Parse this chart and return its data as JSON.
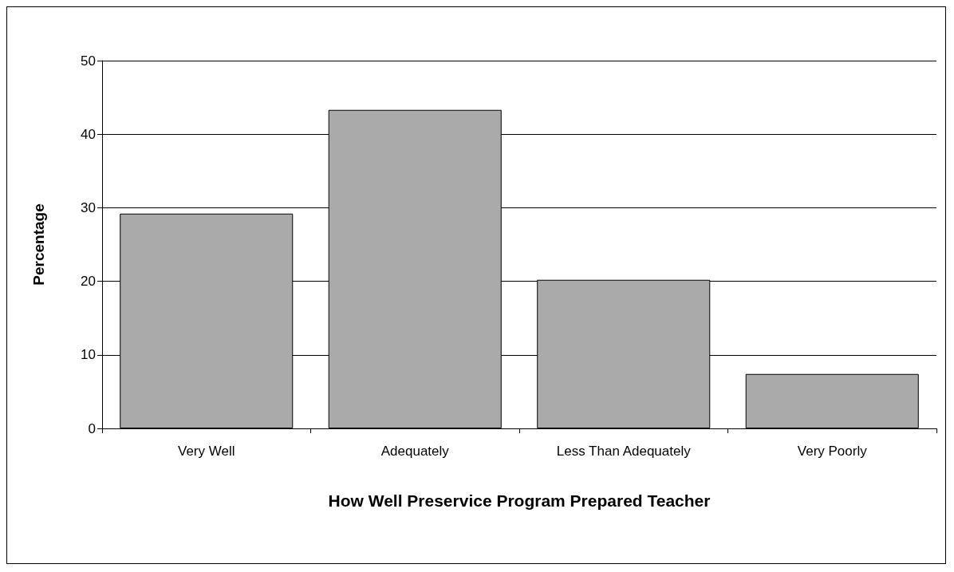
{
  "chart_data": {
    "type": "bar",
    "xlabel": "How Well Preservice Program Prepared Teacher",
    "ylabel": "Percentage",
    "categories": [
      "Very Well",
      "Adequately",
      "Less Than Adequately",
      "Very Poorly"
    ],
    "values": [
      29.2,
      43.3,
      20.2,
      7.4
    ],
    "color": "#aaaaaa",
    "ylim": [
      0,
      50
    ],
    "yticks": [
      0,
      10,
      20,
      30,
      40,
      50
    ],
    "grid": "y"
  }
}
